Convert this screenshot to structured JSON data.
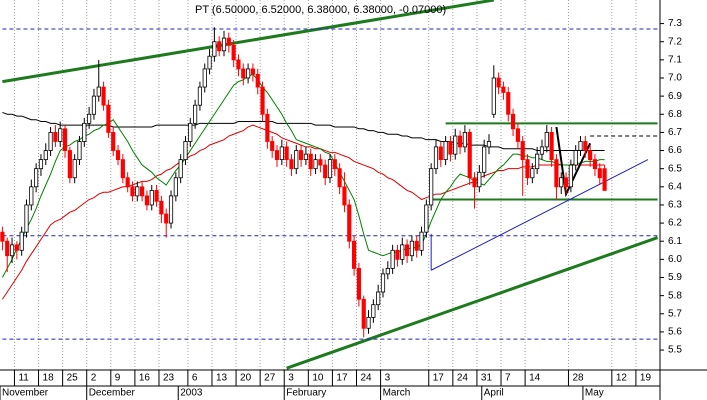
{
  "chart_data": {
    "type": "candlestick",
    "title": "PT (6.50000, 6.52000, 6.38000, 6.38000, -0.07000)",
    "categories": [
      null,
      null,
      null,
      "11",
      null,
      null,
      null,
      null,
      "18",
      null,
      null,
      null,
      null,
      "25",
      null,
      null,
      null,
      null,
      "2",
      null,
      null,
      null,
      null,
      "9",
      null,
      null,
      null,
      null,
      "16",
      null,
      null,
      null,
      null,
      "23",
      null,
      null,
      null,
      null,
      null,
      "6",
      null,
      null,
      null,
      null,
      "13",
      null,
      null,
      null,
      null,
      "20",
      null,
      null,
      null,
      null,
      "27",
      null,
      null,
      null,
      null,
      "3",
      null,
      null,
      null,
      null,
      "10",
      null,
      null,
      null,
      null,
      "17",
      null,
      null,
      null,
      null,
      "24",
      null,
      null,
      null,
      null,
      "3",
      null,
      null,
      null,
      null,
      null,
      null,
      null,
      null,
      null,
      "17",
      null,
      null,
      null,
      null,
      "24",
      null,
      null,
      null,
      null,
      "31",
      null,
      null,
      null,
      null,
      "7",
      null,
      null,
      null,
      null,
      "14",
      null,
      null,
      null,
      null,
      null,
      null,
      null,
      null,
      "28",
      null,
      null,
      null,
      null,
      null,
      null,
      null,
      null,
      "12",
      null,
      null,
      null,
      null,
      "19",
      null,
      null,
      null,
      null
    ],
    "month_labels": [
      "November",
      null,
      null,
      null,
      null,
      null,
      null,
      null,
      null,
      null,
      null,
      null,
      null,
      null,
      null,
      null,
      null,
      null,
      "December",
      null,
      null,
      null,
      null,
      null,
      null,
      null,
      null,
      null,
      null,
      null,
      null,
      null,
      null,
      null,
      null,
      null,
      null,
      "2003",
      null,
      null,
      null,
      null,
      null,
      null,
      null,
      null,
      null,
      null,
      null,
      null,
      null,
      null,
      null,
      null,
      null,
      null,
      null,
      null,
      null,
      "February",
      null,
      null,
      null,
      null,
      null,
      null,
      null,
      null,
      null,
      null,
      null,
      null,
      null,
      null,
      null,
      null,
      null,
      null,
      null,
      "March",
      null,
      null,
      null,
      null,
      null,
      null,
      null,
      null,
      null,
      null,
      null,
      null,
      null,
      null,
      null,
      null,
      null,
      null,
      null,
      null,
      "April",
      null,
      null,
      null,
      null,
      null,
      null,
      null,
      null,
      null,
      null,
      null,
      null,
      null,
      null,
      null,
      null,
      null,
      null,
      null,
      null,
      "May",
      null,
      null,
      null,
      null,
      null,
      null,
      null,
      null,
      null,
      null,
      null,
      null,
      null,
      null,
      null
    ],
    "open": [
      6.15,
      6.1,
      6.02,
      6.08,
      6.05,
      6.15,
      6.3,
      6.4,
      6.5,
      6.55,
      6.6,
      6.7,
      6.65,
      6.72,
      6.6,
      6.45,
      6.55,
      6.65,
      6.75,
      6.8,
      6.9,
      6.95,
      6.85,
      6.7,
      6.6,
      6.55,
      6.45,
      6.4,
      6.35,
      6.4,
      6.35,
      6.3,
      6.38,
      6.32,
      6.25,
      6.2,
      6.35,
      6.45,
      6.55,
      6.65,
      6.75,
      6.85,
      6.95,
      7.05,
      7.12,
      7.2,
      7.15,
      7.22,
      7.18,
      7.1,
      7.05,
      7.0,
      7.05,
      7.02,
      6.95,
      6.8,
      6.65,
      6.6,
      6.55,
      6.62,
      6.55,
      6.5,
      6.6,
      6.55,
      6.58,
      6.5,
      6.55,
      6.52,
      6.45,
      6.55,
      6.5,
      6.4,
      6.3,
      6.1,
      5.95,
      5.78,
      5.62,
      5.68,
      5.75,
      5.82,
      5.92,
      5.95,
      6.05,
      6.0,
      6.08,
      6.02,
      6.1,
      6.05,
      6.15,
      6.3,
      6.5,
      6.62,
      6.55,
      6.65,
      6.58,
      6.68,
      6.62,
      6.7,
      6.45,
      6.4,
      6.48,
      6.62,
      6.8,
      7.0,
      6.95,
      6.92,
      6.8,
      6.72,
      6.65,
      6.55,
      6.45,
      6.5,
      6.58,
      6.62,
      6.7,
      6.55,
      6.4,
      6.45,
      6.4,
      6.52,
      6.6,
      6.65,
      6.6,
      6.55,
      6.5,
      6.5,
      null,
      null,
      null,
      null,
      null,
      null,
      null,
      null,
      null,
      null,
      null
    ],
    "high": [
      6.18,
      6.12,
      6.12,
      6.1,
      6.18,
      6.33,
      6.44,
      6.53,
      6.58,
      6.64,
      6.73,
      6.74,
      6.76,
      6.74,
      6.62,
      6.58,
      6.68,
      6.78,
      6.84,
      6.94,
      7.1,
      6.98,
      6.88,
      6.73,
      6.63,
      6.58,
      6.48,
      6.43,
      6.43,
      6.43,
      6.38,
      6.41,
      6.41,
      6.35,
      6.28,
      6.38,
      6.48,
      6.58,
      6.68,
      6.78,
      6.88,
      6.98,
      7.08,
      7.16,
      7.28,
      7.23,
      7.26,
      7.25,
      7.21,
      7.13,
      7.08,
      7.08,
      7.08,
      7.05,
      6.98,
      6.83,
      6.68,
      6.63,
      6.66,
      6.65,
      6.58,
      6.63,
      6.63,
      6.62,
      6.61,
      6.58,
      6.58,
      6.55,
      6.58,
      6.58,
      6.53,
      6.48,
      6.33,
      6.13,
      5.98,
      5.8,
      5.72,
      5.78,
      5.86,
      5.95,
      5.99,
      6.08,
      6.08,
      6.12,
      6.11,
      6.13,
      6.13,
      6.18,
      6.33,
      6.53,
      6.66,
      6.65,
      6.68,
      6.68,
      6.72,
      6.71,
      6.74,
      6.72,
      6.48,
      6.52,
      6.66,
      6.69,
      7.07,
      7.03,
      6.98,
      6.95,
      6.83,
      6.75,
      6.68,
      6.58,
      6.53,
      6.62,
      6.66,
      6.74,
      6.73,
      6.58,
      6.48,
      6.48,
      6.55,
      6.63,
      6.68,
      6.68,
      6.63,
      6.58,
      6.53,
      6.52,
      null,
      null,
      null,
      null,
      null,
      null,
      null,
      null,
      null,
      null,
      null
    ],
    "low": [
      6.05,
      5.93,
      5.98,
      6.0,
      6.02,
      6.12,
      6.27,
      6.37,
      6.46,
      6.52,
      6.57,
      6.62,
      6.62,
      6.56,
      6.42,
      6.42,
      6.52,
      6.62,
      6.72,
      6.77,
      6.87,
      6.82,
      6.67,
      6.57,
      6.52,
      6.42,
      6.37,
      6.32,
      6.32,
      6.32,
      6.27,
      6.27,
      6.29,
      6.2,
      6.12,
      6.17,
      6.32,
      6.42,
      6.52,
      6.62,
      6.72,
      6.82,
      6.92,
      7.02,
      7.09,
      7.12,
      7.12,
      7.14,
      7.06,
      7.01,
      6.96,
      6.97,
      6.98,
      6.91,
      6.76,
      6.61,
      6.56,
      6.51,
      6.52,
      6.51,
      6.46,
      6.47,
      6.51,
      6.52,
      6.46,
      6.47,
      6.48,
      6.41,
      6.42,
      6.46,
      6.36,
      6.26,
      6.06,
      5.91,
      5.74,
      5.57,
      5.59,
      5.65,
      5.72,
      5.79,
      5.89,
      5.92,
      5.96,
      5.97,
      5.98,
      5.99,
      6.01,
      6.02,
      6.12,
      6.27,
      6.47,
      6.51,
      6.52,
      6.54,
      6.55,
      6.58,
      6.59,
      6.41,
      6.28,
      6.37,
      6.45,
      6.58,
      6.78,
      6.91,
      6.88,
      6.76,
      6.68,
      6.61,
      6.35,
      6.41,
      6.42,
      6.47,
      6.55,
      6.59,
      6.51,
      6.33,
      6.36,
      6.36,
      6.37,
      6.49,
      6.57,
      6.56,
      6.51,
      6.46,
      6.41,
      6.38,
      null,
      null,
      null,
      null,
      null,
      null,
      null,
      null,
      null,
      null,
      null
    ],
    "close": [
      6.1,
      6.02,
      6.08,
      6.05,
      6.15,
      6.3,
      6.4,
      6.5,
      6.55,
      6.6,
      6.7,
      6.65,
      6.72,
      6.6,
      6.45,
      6.55,
      6.65,
      6.75,
      6.8,
      6.9,
      6.95,
      6.85,
      6.7,
      6.6,
      6.55,
      6.45,
      6.4,
      6.35,
      6.4,
      6.35,
      6.3,
      6.38,
      6.32,
      6.25,
      6.2,
      6.35,
      6.45,
      6.55,
      6.65,
      6.75,
      6.85,
      6.95,
      7.05,
      7.12,
      7.2,
      7.15,
      7.22,
      7.18,
      7.1,
      7.05,
      7.0,
      7.05,
      7.02,
      6.95,
      6.8,
      6.65,
      6.6,
      6.55,
      6.62,
      6.55,
      6.5,
      6.6,
      6.55,
      6.58,
      6.5,
      6.55,
      6.52,
      6.45,
      6.55,
      6.5,
      6.4,
      6.3,
      6.1,
      5.95,
      5.78,
      5.62,
      5.68,
      5.75,
      5.82,
      5.92,
      5.95,
      6.05,
      6.0,
      6.08,
      6.02,
      6.1,
      6.05,
      6.15,
      6.3,
      6.5,
      6.62,
      6.55,
      6.65,
      6.58,
      6.68,
      6.62,
      6.7,
      6.45,
      6.4,
      6.48,
      6.62,
      6.65,
      7.0,
      6.95,
      6.92,
      6.8,
      6.72,
      6.65,
      6.55,
      6.45,
      6.5,
      6.58,
      6.62,
      6.7,
      6.55,
      6.4,
      6.45,
      6.4,
      6.52,
      6.6,
      6.65,
      6.6,
      6.55,
      6.5,
      6.45,
      6.38,
      null,
      null,
      null,
      null,
      null,
      null,
      null,
      null,
      null,
      null,
      null
    ],
    "up_color": "#ffffff",
    "down_color": "#ff0000",
    "outline_color": "#000000",
    "series": [
      {
        "color": "#000000",
        "values": [
          6.81,
          6.8,
          6.8,
          6.79,
          6.79,
          6.78,
          6.77,
          6.77,
          6.76,
          6.76,
          6.75,
          6.75,
          6.74,
          6.74,
          6.74,
          6.74,
          6.74,
          6.74,
          6.74,
          6.74,
          6.74,
          6.74,
          6.74,
          6.73,
          6.73,
          6.73,
          6.73,
          6.73,
          6.73,
          6.73,
          6.73,
          6.73,
          6.74,
          6.74,
          6.74,
          6.74,
          6.74,
          6.74,
          6.74,
          6.74,
          6.74,
          6.75,
          6.75,
          6.75,
          6.75,
          6.75,
          6.75,
          6.75,
          6.75,
          6.76,
          6.76,
          6.76,
          6.76,
          6.76,
          6.76,
          6.76,
          6.76,
          6.75,
          6.75,
          6.75,
          6.75,
          6.75,
          6.75,
          6.75,
          6.75,
          6.74,
          6.74,
          6.74,
          6.74,
          6.73,
          6.73,
          6.73,
          6.73,
          6.73,
          6.72,
          6.72,
          6.71,
          6.71,
          6.7,
          6.7,
          6.69,
          6.69,
          6.69,
          6.68,
          6.68,
          6.67,
          6.67,
          6.67,
          6.66,
          6.66,
          6.66,
          6.65,
          6.65,
          6.65,
          6.64,
          6.64,
          6.64,
          6.63,
          6.63,
          6.63,
          6.63,
          6.62,
          6.62,
          6.62,
          6.61,
          6.61,
          6.61,
          6.61,
          6.61,
          6.61,
          6.61,
          6.6,
          6.6,
          6.6,
          6.6,
          6.6,
          6.6,
          6.6,
          6.6,
          6.6,
          6.6,
          6.6,
          6.6,
          6.6,
          6.6,
          6.6,
          null,
          null,
          null,
          null,
          null,
          null,
          null,
          null,
          null,
          null,
          null
        ]
      },
      {
        "color": "#e00000",
        "values": [
          5.78,
          5.82,
          5.86,
          5.9,
          5.94,
          5.99,
          6.03,
          6.07,
          6.11,
          6.15,
          6.19,
          6.21,
          6.22,
          6.24,
          6.26,
          6.27,
          6.29,
          6.31,
          6.33,
          6.34,
          6.36,
          6.37,
          6.37,
          6.38,
          6.39,
          6.4,
          6.4,
          6.41,
          6.42,
          6.43,
          6.43,
          6.44,
          6.46,
          6.47,
          6.49,
          6.5,
          6.52,
          6.54,
          6.55,
          6.57,
          6.58,
          6.6,
          6.61,
          6.63,
          6.64,
          6.65,
          6.66,
          6.68,
          6.69,
          6.7,
          6.71,
          6.73,
          6.74,
          6.73,
          6.72,
          6.71,
          6.7,
          6.69,
          6.67,
          6.66,
          6.65,
          6.64,
          6.63,
          6.62,
          6.62,
          6.61,
          6.61,
          6.6,
          6.59,
          6.59,
          6.58,
          6.57,
          6.56,
          6.54,
          6.53,
          6.52,
          6.51,
          6.5,
          6.48,
          6.47,
          6.45,
          6.44,
          6.42,
          6.4,
          6.38,
          6.37,
          6.35,
          6.33,
          6.34,
          6.35,
          6.36,
          6.36,
          6.37,
          6.38,
          6.39,
          6.4,
          6.41,
          6.42,
          6.43,
          6.45,
          6.46,
          6.47,
          6.48,
          6.49,
          6.49,
          6.5,
          6.5,
          6.5,
          6.51,
          6.51,
          6.51,
          6.52,
          6.52,
          6.52,
          6.52,
          6.52,
          6.52,
          6.52,
          6.52,
          6.52,
          6.52,
          6.52,
          6.52,
          6.52,
          6.52,
          6.52,
          null,
          null,
          null,
          null,
          null,
          null,
          null,
          null,
          null,
          null,
          null
        ]
      },
      {
        "color": "#008000",
        "values": [
          5.9,
          5.95,
          6.0,
          6.06,
          6.11,
          6.17,
          6.22,
          6.28,
          6.35,
          6.41,
          6.47,
          6.54,
          6.6,
          6.62,
          6.63,
          6.65,
          6.66,
          6.68,
          6.69,
          6.71,
          6.72,
          6.74,
          6.75,
          6.77,
          6.73,
          6.69,
          6.65,
          6.6,
          6.56,
          6.52,
          6.5,
          6.48,
          6.45,
          6.43,
          6.41,
          6.45,
          6.49,
          6.52,
          6.56,
          6.6,
          6.64,
          6.68,
          6.72,
          6.76,
          6.8,
          6.84,
          6.88,
          6.92,
          6.96,
          6.98,
          6.99,
          7.01,
          7.02,
          6.99,
          6.95,
          6.92,
          6.88,
          6.84,
          6.8,
          6.75,
          6.71,
          6.66,
          6.65,
          6.64,
          6.63,
          6.62,
          6.61,
          6.59,
          6.58,
          6.53,
          6.48,
          6.43,
          6.38,
          6.33,
          6.24,
          6.14,
          6.05,
          6.04,
          6.03,
          6.02,
          6.03,
          6.04,
          6.04,
          6.05,
          6.06,
          6.06,
          6.07,
          6.08,
          6.14,
          6.21,
          6.27,
          6.33,
          6.37,
          6.4,
          6.44,
          6.47,
          6.46,
          6.45,
          6.43,
          6.42,
          6.41,
          6.44,
          6.47,
          6.5,
          6.52,
          6.55,
          6.58,
          6.58,
          6.57,
          6.57,
          6.56,
          6.56,
          6.55,
          6.54,
          6.54,
          6.53,
          6.52,
          6.52,
          6.52,
          6.53,
          6.53,
          6.54,
          6.54,
          6.54,
          6.55,
          6.55,
          null,
          null,
          null,
          null,
          null,
          null,
          null,
          null,
          null,
          null,
          null
        ]
      }
    ],
    "lines": [
      {
        "color": "#1e7a1e",
        "width": 3,
        "dash": false,
        "at": [
          0,
          102
        ],
        "values": [
          6.98,
          7.43
        ]
      },
      {
        "color": "#1e7a1e",
        "width": 3,
        "dash": false,
        "at": [
          59,
          136
        ],
        "values": [
          5.4,
          6.12
        ]
      },
      {
        "color": "#1e7a1e",
        "width": 2,
        "dash": false,
        "at": [
          92,
          136
        ],
        "values": [
          6.75,
          6.75
        ]
      },
      {
        "color": "#1e7a1e",
        "width": 2,
        "dash": false,
        "at": [
          89,
          136
        ],
        "values": [
          6.33,
          6.33
        ]
      },
      {
        "color": "#2020c0",
        "width": 1,
        "dash": false,
        "at": [
          89,
          134
        ],
        "values": [
          5.94,
          6.55
        ]
      },
      {
        "color": "#2020c0",
        "width": 1,
        "dash": false,
        "at": [
          89,
          89
        ],
        "values": [
          5.94,
          6.14
        ]
      },
      {
        "color": "#2020c0",
        "width": 1,
        "dash": true,
        "at": [
          0,
          136
        ],
        "values": [
          7.27,
          7.27
        ]
      },
      {
        "color": "#2020c0",
        "width": 1,
        "dash": true,
        "at": [
          0,
          136
        ],
        "values": [
          6.13,
          6.13
        ]
      },
      {
        "color": "#2020c0",
        "width": 1,
        "dash": true,
        "at": [
          0,
          136
        ],
        "values": [
          5.56,
          5.56
        ]
      },
      {
        "color": "#000000",
        "width": 1,
        "dash": true,
        "at": [
          122,
          136
        ],
        "values": [
          6.68,
          6.68
        ]
      },
      {
        "color": "#000000",
        "width": 2,
        "dash": false,
        "at": [
          115,
          117,
          122
        ],
        "values": [
          6.73,
          6.36,
          6.64
        ]
      }
    ],
    "ylim": [
      5.39,
      7.43
    ],
    "yticks": [
      5.5,
      5.6,
      5.7,
      5.8,
      5.9,
      {
        "value": 6,
        "label": "6.0"
      },
      6.1,
      6.2,
      6.3,
      6.4,
      6.5,
      6.6,
      6.7,
      6.8,
      6.9,
      {
        "value": 7,
        "label": "7.0"
      },
      7.1,
      7.2,
      7.3
    ],
    "grid": true
  }
}
